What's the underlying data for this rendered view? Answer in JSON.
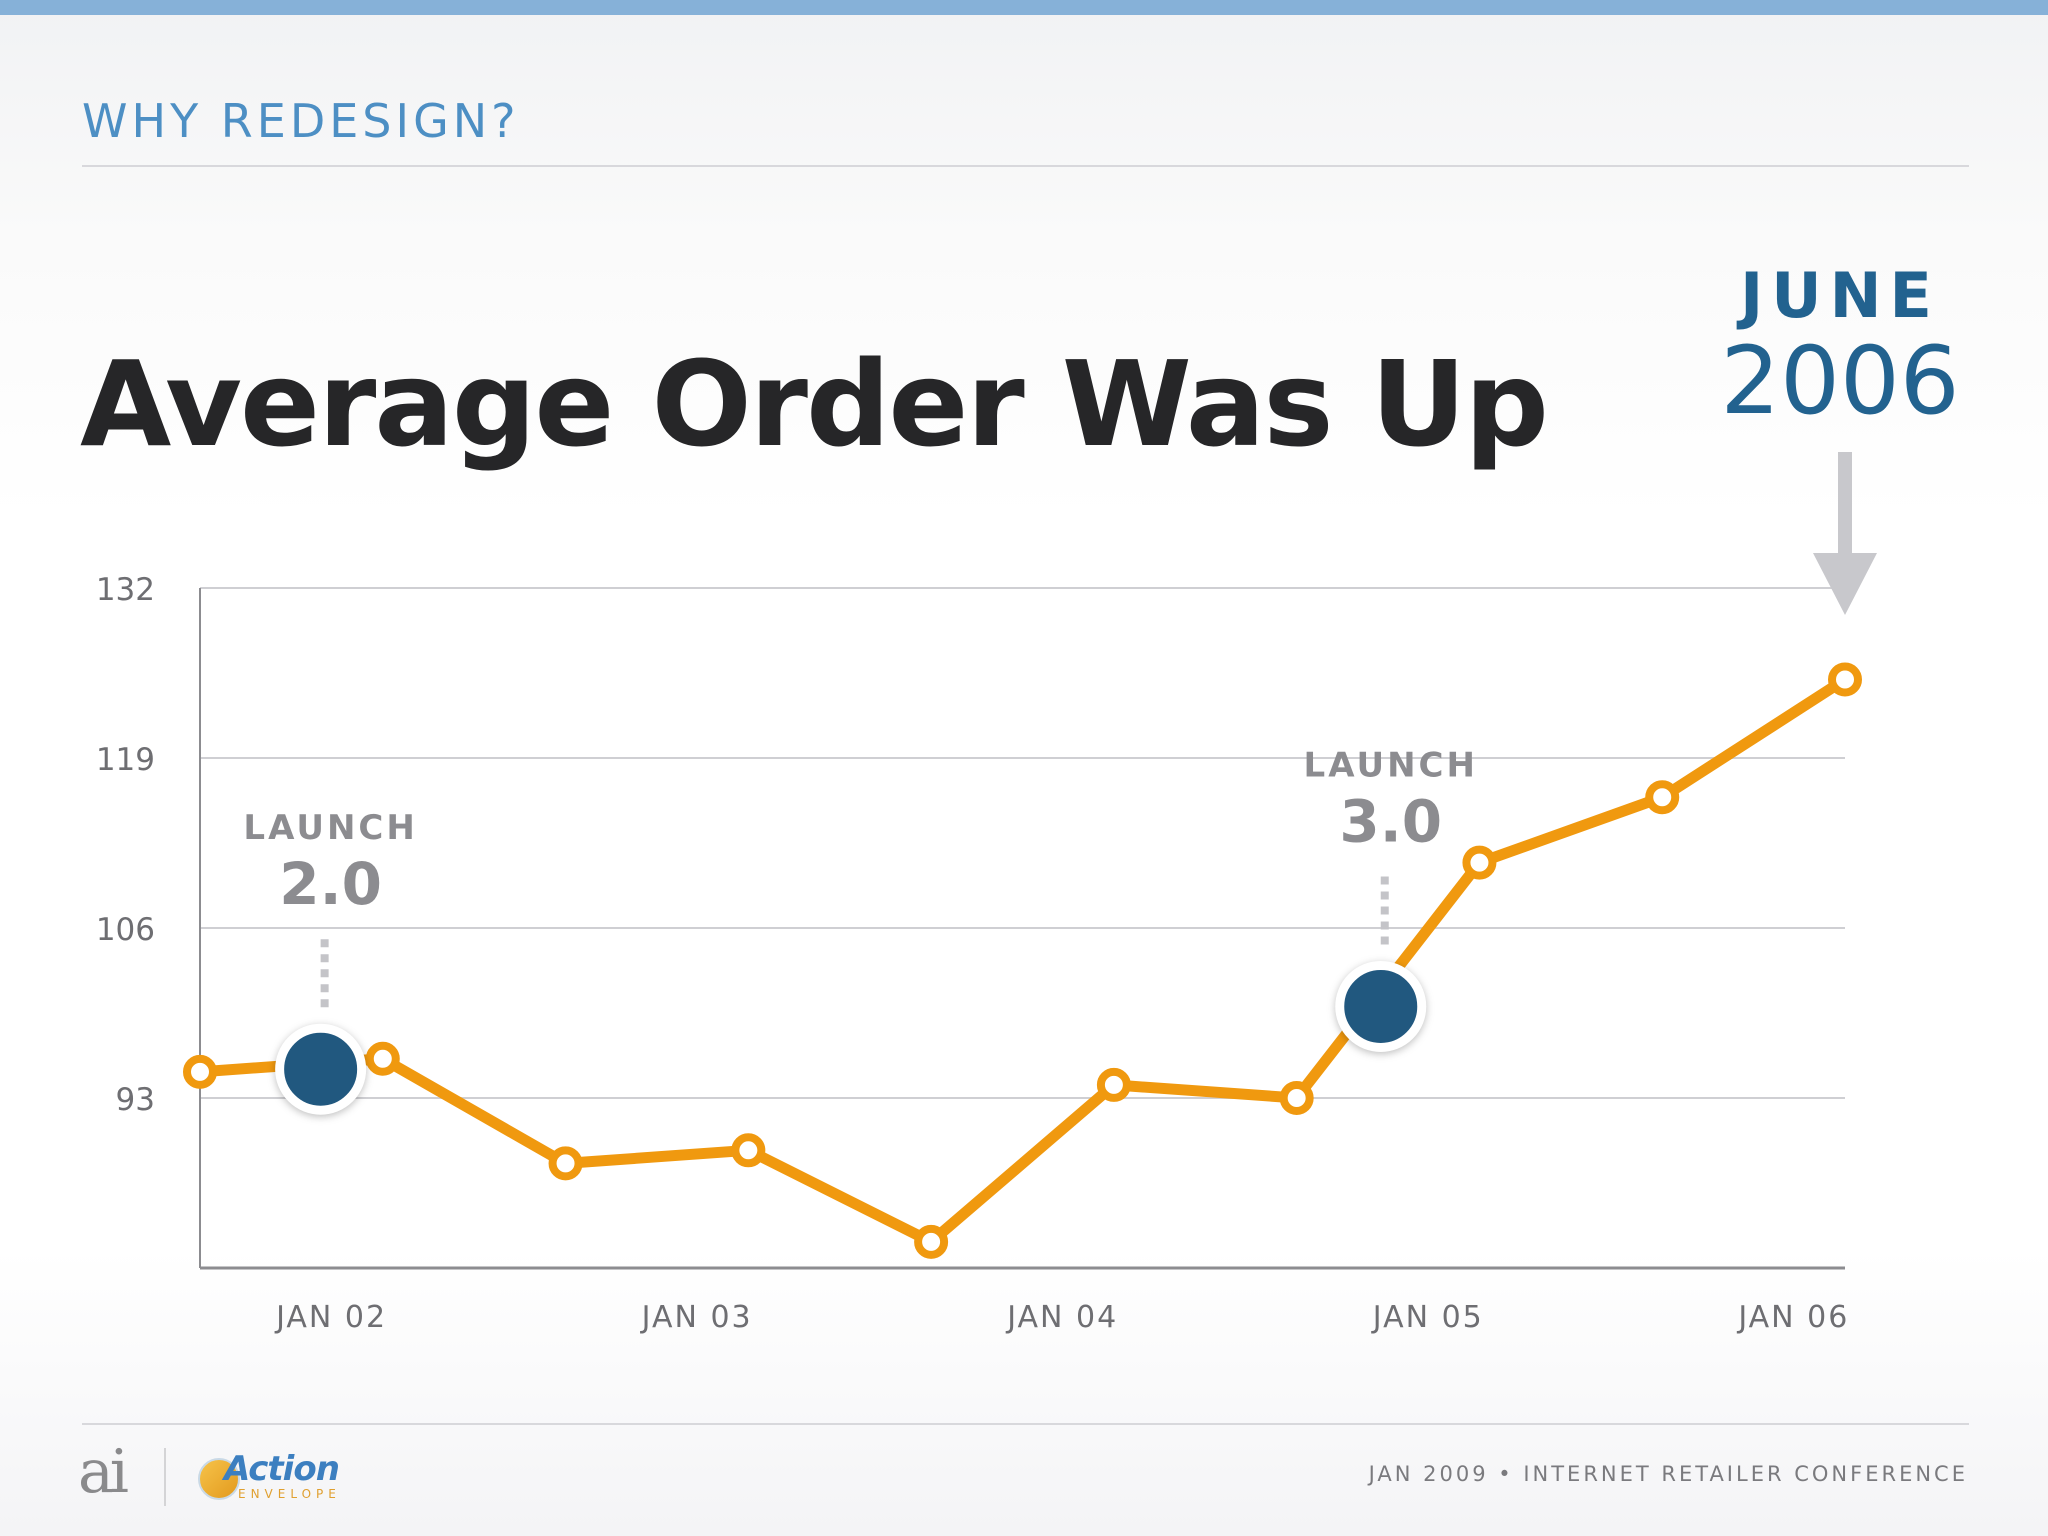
{
  "header": {
    "section_label": "WHY REDESIGN?",
    "title": "Average Order Was Up"
  },
  "callout": {
    "month": "JUNE",
    "year": "2006"
  },
  "colors": {
    "accent": "#4d8fc4",
    "line": "#f0990f",
    "marker": "#21587f",
    "callout": "#22628f",
    "arrow": "#c8c8cc"
  },
  "chart_data": {
    "type": "line",
    "title": "Average Order Was Up",
    "xlabel": "",
    "ylabel": "",
    "ylim": [
      80,
      132
    ],
    "yticks": [
      93,
      106,
      119,
      132
    ],
    "grid": true,
    "x_tick_labels": [
      "JAN 02",
      "JAN 03",
      "JAN 04",
      "JAN 05",
      "JAN 06"
    ],
    "x_tick_positions": [
      0.35,
      1.35,
      2.35,
      3.35,
      4.35
    ],
    "xlim": [
      -0.01,
      4.49
    ],
    "series": [
      {
        "x": [
          -0.01,
          0.49,
          0.99,
          1.49,
          1.99,
          2.49,
          2.99,
          3.49,
          3.99,
          4.49
        ],
        "values": [
          95,
          96,
          88,
          89,
          82,
          94,
          93,
          111,
          116,
          125
        ]
      }
    ],
    "annotations": [
      {
        "label": "LAUNCH",
        "version": "2.0",
        "x": 0.32,
        "y": 95.2
      },
      {
        "label": "LAUNCH",
        "version": "3.0",
        "x": 3.22,
        "y": 100
      }
    ]
  },
  "footer": {
    "logo_ai": "ai",
    "logo_action": "Action",
    "logo_action_sub": "ENVELOPE",
    "text": "JAN 2009 • INTERNET RETAILER CONFERENCE"
  }
}
